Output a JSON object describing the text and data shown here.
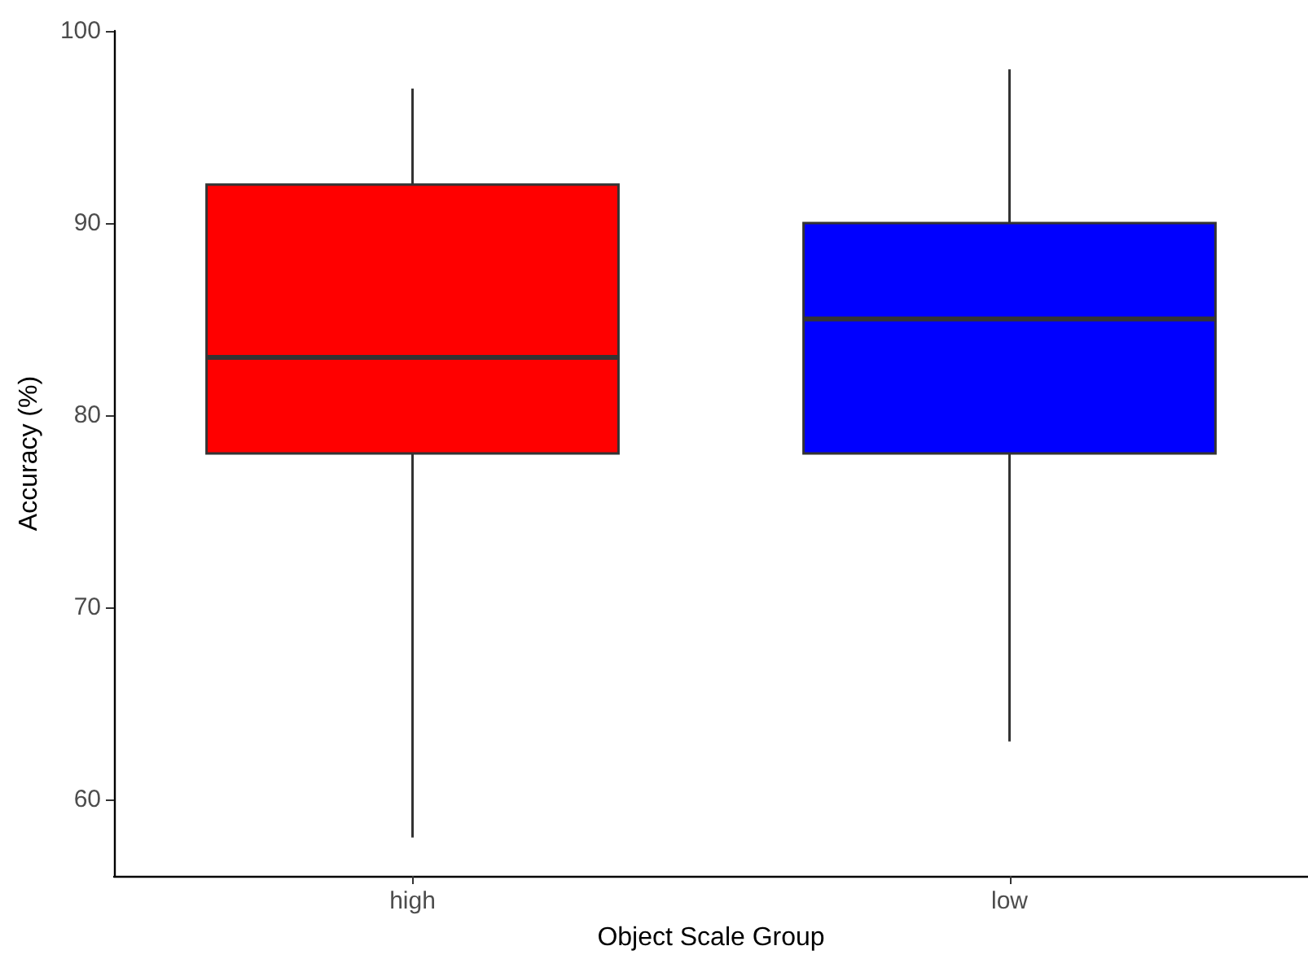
{
  "chart_data": {
    "type": "box",
    "categories": [
      "high",
      "low"
    ],
    "boxes": [
      {
        "low": 58,
        "q1": 78,
        "median": 83,
        "q3": 92,
        "high": 97
      },
      {
        "low": 63,
        "q1": 78,
        "median": 85,
        "q3": 90,
        "high": 98
      }
    ],
    "colors": [
      "#ff0000",
      "#0000ff"
    ],
    "xlabel": "Object Scale Group",
    "ylabel": "Accuracy (%)",
    "ylim": [
      56,
      100
    ],
    "yticks": [
      60,
      70,
      80,
      90,
      100
    ]
  }
}
